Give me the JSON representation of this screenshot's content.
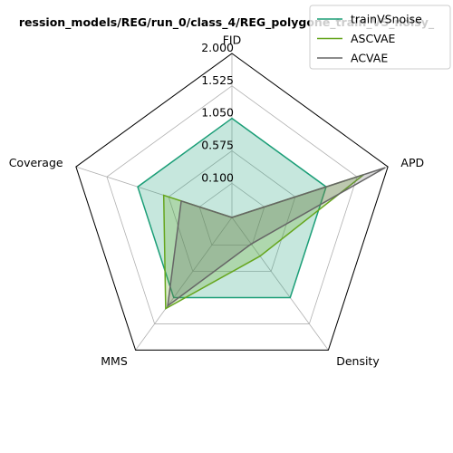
{
  "chart_data": {
    "type": "radar",
    "title": "ression_models/REG/run_0/class_4/REG_polygone_train_VS_noisy_",
    "axes": [
      "FID",
      "APD",
      "Density",
      "MMS",
      "Coverage"
    ],
    "ticks": [
      "0.100",
      "0.575",
      "1.050",
      "1.525",
      "2.000"
    ],
    "rlim": [
      -0.4,
      2.0
    ],
    "grid": true,
    "legend_position": "top-right",
    "series": [
      {
        "name": "trainVSnoise",
        "color": "#1b9e77",
        "values": [
          1.05,
          1.05,
          1.05,
          1.05,
          1.05
        ]
      },
      {
        "name": "ASCVAE",
        "color": "#66a61e",
        "values": [
          -0.4,
          1.63,
          0.3,
          1.25,
          0.65
        ]
      },
      {
        "name": "ACVAE",
        "color": "#666666",
        "values": [
          -0.4,
          1.96,
          0.08,
          1.2,
          0.38
        ]
      }
    ]
  }
}
